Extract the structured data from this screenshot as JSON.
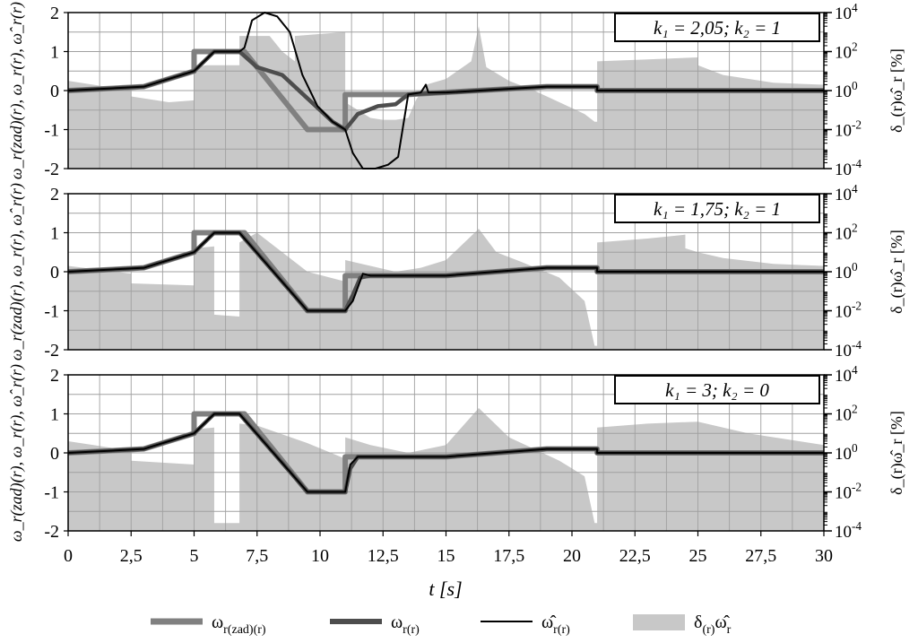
{
  "chart_data": {
    "type": "line",
    "xlabel": "t   [s]",
    "x_ticks": [
      "0",
      "2,5",
      "5",
      "7,5",
      "10",
      "12,5",
      "15",
      "17,5",
      "20",
      "22,5",
      "25",
      "27,5",
      "30"
    ],
    "xlim": [
      0,
      30
    ],
    "ylim_left": [
      -2,
      2
    ],
    "y_ticks_left": [
      "2",
      "1",
      "0",
      "-1",
      "-2"
    ],
    "ylim_right_log10": [
      -4,
      4
    ],
    "y_ticks_right": [
      "10^4",
      "10^2",
      "10^0",
      "10^-2",
      "10^-4"
    ],
    "y_label_left": "ω_r(zad)(r), ω_r(r), ω̂_r(r)",
    "y_label_right": "δ_(r)ω̂_r   [%]",
    "grid": true,
    "colors": {
      "reference": "#808080",
      "measured": "#4d4d4d",
      "estimated": "#000000",
      "error_area": "#c8c8c8"
    },
    "legend": {
      "placement": "bottom",
      "entries": [
        {
          "main": "ω",
          "sub": "r(zad)(r)",
          "color": "#808080"
        },
        {
          "main": "ω",
          "sub": "r(r)",
          "color": "#4d4d4d"
        },
        {
          "main": "ω̂",
          "sub": "r(r)",
          "color": "#000000"
        },
        {
          "main": "δ",
          "sub": "(r)",
          "tail": "ω̂",
          "tail_sub": "r",
          "color": "#c8c8c8"
        }
      ]
    },
    "panels": [
      {
        "annotation": "k₁ = 2,05;   k₂ = 1",
        "series": [
          {
            "key": "reference",
            "x": [
              0,
              3,
              5,
              5,
              7,
              9.5,
              11,
              11,
              13.5,
              19,
              21,
              21,
              30
            ],
            "y": [
              0,
              0.1,
              0.5,
              1,
              1,
              -1,
              -1,
              -0.1,
              -0.1,
              0.1,
              0.1,
              0,
              0
            ]
          },
          {
            "key": "measured",
            "x": [
              0,
              3,
              5,
              5.8,
              6.8,
              7.5,
              8.5,
              9.5,
              10.5,
              11,
              11.5,
              12.3,
              13.0,
              13.5,
              15,
              19,
              21,
              21,
              30
            ],
            "y": [
              0,
              0.1,
              0.5,
              1,
              1,
              0.6,
              0.4,
              -0.2,
              -0.8,
              -1,
              -0.6,
              -0.4,
              -0.35,
              -0.1,
              -0.05,
              0.1,
              0.1,
              0,
              0
            ]
          },
          {
            "key": "estimated",
            "x": [
              0,
              3,
              5,
              5.8,
              6.8,
              7.0,
              7.3,
              7.8,
              8.3,
              8.8,
              9.3,
              9.9,
              10.5,
              11.0,
              11.3,
              11.7,
              12.2,
              12.7,
              13.1,
              13.5,
              14.0,
              14.2,
              14.3,
              15,
              19,
              21,
              21,
              30
            ],
            "y": [
              0,
              0.1,
              0.5,
              1,
              1,
              1.1,
              1.8,
              2.0,
              1.9,
              1.5,
              0.4,
              -0.4,
              -0.8,
              -1.0,
              -1.6,
              -2.0,
              -2.0,
              -1.9,
              -1.7,
              -0.1,
              -0.05,
              0.15,
              -0.05,
              -0.05,
              0.1,
              0.1,
              0,
              0
            ]
          },
          {
            "key": "error_area",
            "x": [
              0,
              1,
              2,
              2.5,
              2.5,
              4,
              5,
              5,
              5.5,
              6.8,
              6.8,
              8,
              8.5,
              9,
              9,
              10,
              11,
              11,
              11.5,
              12,
              12.5,
              13,
              13.5,
              13.8,
              14.2,
              15,
              16,
              16.3,
              16.6,
              17.5,
              18.5,
              19.5,
              20.5,
              20.9,
              21,
              21,
              23,
              25,
              25,
              26,
              28,
              30
            ],
            "log10": [
              0.5,
              0.3,
              0.1,
              0.0,
              -0.3,
              -0.6,
              -0.5,
              1.2,
              1.3,
              1.3,
              2.8,
              2.8,
              2.0,
              1.5,
              2.8,
              2.9,
              3.0,
              -0.6,
              -1.0,
              -1.4,
              -1.5,
              -1.5,
              -1.4,
              -0.5,
              0.3,
              0.6,
              1.5,
              3.3,
              1.2,
              0.5,
              0.0,
              -0.6,
              -1.2,
              -1.6,
              -1.6,
              1.5,
              1.6,
              1.7,
              1.3,
              0.8,
              0.4,
              0.3
            ]
          }
        ]
      },
      {
        "annotation": "k₁ = 1,75;   k₂ = 1",
        "series": [
          {
            "key": "reference",
            "x": [
              0,
              3,
              5,
              5,
              7,
              9.5,
              11,
              11,
              15,
              19,
              21,
              21,
              30
            ],
            "y": [
              0,
              0.1,
              0.5,
              1,
              1,
              -1,
              -1,
              -0.1,
              -0.1,
              0.1,
              0.1,
              0,
              0
            ]
          },
          {
            "key": "measured",
            "x": [
              0,
              3,
              5,
              5.8,
              6.8,
              9.5,
              11,
              11.3,
              11.6,
              12,
              15,
              19,
              21,
              21,
              30
            ],
            "y": [
              0,
              0.1,
              0.5,
              1,
              1,
              -1,
              -1,
              -0.6,
              -0.15,
              -0.1,
              -0.1,
              0.1,
              0.1,
              0,
              0
            ]
          },
          {
            "key": "estimated",
            "x": [
              0,
              3,
              5,
              5.8,
              6.8,
              9.5,
              11,
              11.3,
              11.7,
              12,
              15,
              19,
              21,
              21,
              30
            ],
            "y": [
              0,
              0.1,
              0.5,
              1,
              1,
              -1,
              -1,
              -0.75,
              -0.05,
              -0.1,
              -0.1,
              0.1,
              0.1,
              0,
              0
            ]
          },
          {
            "key": "error_area",
            "x": [
              0,
              2.5,
              2.5,
              5,
              5,
              5.8,
              5.8,
              6.8,
              6.8,
              7.5,
              8.5,
              9.5,
              11,
              11,
              12,
              13,
              14,
              15,
              16.3,
              17,
              18,
              19.5,
              20.5,
              20.9,
              21,
              21,
              23,
              24.5,
              24.5,
              25,
              26,
              28,
              30
            ],
            "log10": [
              0.3,
              -0.1,
              -0.6,
              -0.7,
              1.2,
              1.3,
              -2.2,
              -2.3,
              1.5,
              2.0,
              1.0,
              0.0,
              -0.5,
              0.6,
              0.3,
              0.0,
              0.2,
              0.6,
              2.2,
              1.0,
              0.5,
              -0.3,
              -1.5,
              -3.8,
              -3.8,
              1.5,
              1.7,
              1.9,
              1.2,
              1.0,
              0.7,
              0.4,
              0.3
            ]
          }
        ]
      },
      {
        "annotation": "k₁ = 3;   k₂ = 0",
        "series": [
          {
            "key": "reference",
            "x": [
              0,
              3,
              5,
              5,
              7,
              9.5,
              11,
              11,
              15,
              19,
              21,
              21,
              30
            ],
            "y": [
              0,
              0.1,
              0.5,
              1,
              1,
              -1,
              -1,
              -0.1,
              -0.1,
              0.1,
              0.1,
              0,
              0
            ]
          },
          {
            "key": "measured",
            "x": [
              0,
              3,
              5,
              5.8,
              6.8,
              9.5,
              11,
              11.2,
              11.5,
              15,
              19,
              21,
              21,
              30
            ],
            "y": [
              0,
              0.1,
              0.5,
              1,
              1,
              -1,
              -1,
              -0.4,
              -0.1,
              -0.1,
              0.1,
              0.1,
              0,
              0
            ]
          },
          {
            "key": "estimated",
            "x": [
              0,
              3,
              5,
              5.8,
              6.8,
              9.5,
              11,
              11.2,
              11.5,
              15,
              19,
              21,
              21,
              30
            ],
            "y": [
              0,
              0.1,
              0.5,
              1,
              1,
              -1,
              -1,
              -0.3,
              -0.1,
              -0.1,
              0.1,
              0.1,
              0,
              0
            ]
          },
          {
            "key": "error_area",
            "x": [
              0,
              1,
              2.5,
              2.5,
              5,
              5,
              5.8,
              5.8,
              6.8,
              6.8,
              7.5,
              9.5,
              11,
              11,
              12,
              13.5,
              15,
              16.3,
              17.5,
              19.5,
              20.5,
              20.9,
              21,
              21,
              23,
              25,
              27,
              30
            ],
            "log10": [
              0.6,
              0.4,
              0.1,
              -0.4,
              -0.6,
              1.2,
              1.3,
              -3.6,
              -3.6,
              1.5,
              1.4,
              0.5,
              -0.3,
              0.8,
              0.4,
              0.0,
              0.4,
              2.3,
              0.8,
              -0.4,
              -1.2,
              -3.6,
              -3.6,
              1.3,
              1.5,
              1.6,
              1.0,
              0.4
            ]
          }
        ]
      }
    ]
  }
}
